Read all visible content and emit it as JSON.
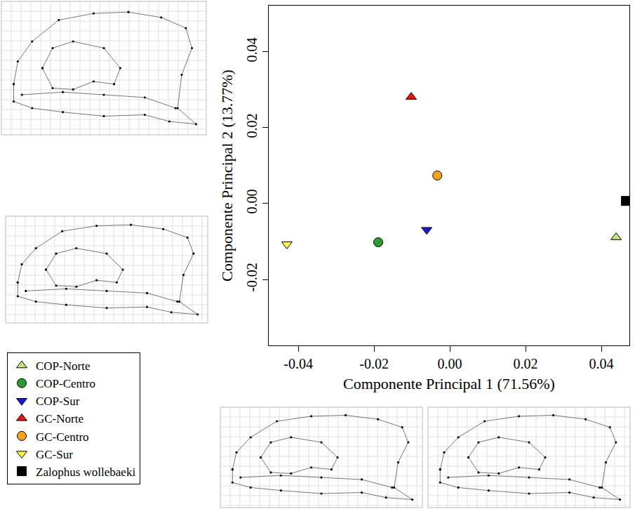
{
  "chart_data": {
    "type": "scatter",
    "x_label": "Componente Principal 1 (71.56%)",
    "y_label": "Componente Principal 2 (13.77%)",
    "xlim": [
      -0.0478,
      0.0474
    ],
    "ylim": [
      -0.0374,
      0.0522
    ],
    "xticks": [
      -0.04,
      -0.02,
      {
        "value": 0,
        "label": "0.00"
      },
      0.02,
      0.04
    ],
    "yticks": [
      -0.02,
      {
        "value": 0,
        "label": "0.00"
      },
      0.02,
      0.04
    ],
    "grid": false,
    "legend": "bottom left",
    "series": [
      {
        "name": "COP-Norte",
        "color": "#c6e67c",
        "marker": "triangle-up",
        "x": [
          0.0439
        ],
        "values": [
          -0.0089
        ]
      },
      {
        "name": "COP-Centro",
        "color": "#2e9b30",
        "marker": "circle",
        "x": [
          -0.0189
        ],
        "values": [
          -0.0102
        ]
      },
      {
        "name": "COP-Sur",
        "color": "#1a1ad6",
        "marker": "triangle-down",
        "x": [
          -0.0061
        ],
        "values": [
          -0.0069
        ]
      },
      {
        "name": "GC-Norte",
        "color": "#e8180e",
        "marker": "triangle-up",
        "x": [
          -0.0102
        ],
        "values": [
          0.0281
        ]
      },
      {
        "name": "GC-Centro",
        "color": "#f5a31e",
        "marker": "circle",
        "x": [
          -0.0033
        ],
        "values": [
          0.0074
        ]
      },
      {
        "name": "GC-Sur",
        "color": "#ffff3a",
        "marker": "triangle-down",
        "x": [
          -0.043
        ],
        "values": [
          -0.0107
        ]
      },
      {
        "name": "Zalophus wollebaeki",
        "color": "#000000",
        "marker": "square",
        "x": [
          0.0465
        ],
        "values": [
          0.0007
        ]
      }
    ]
  }
}
